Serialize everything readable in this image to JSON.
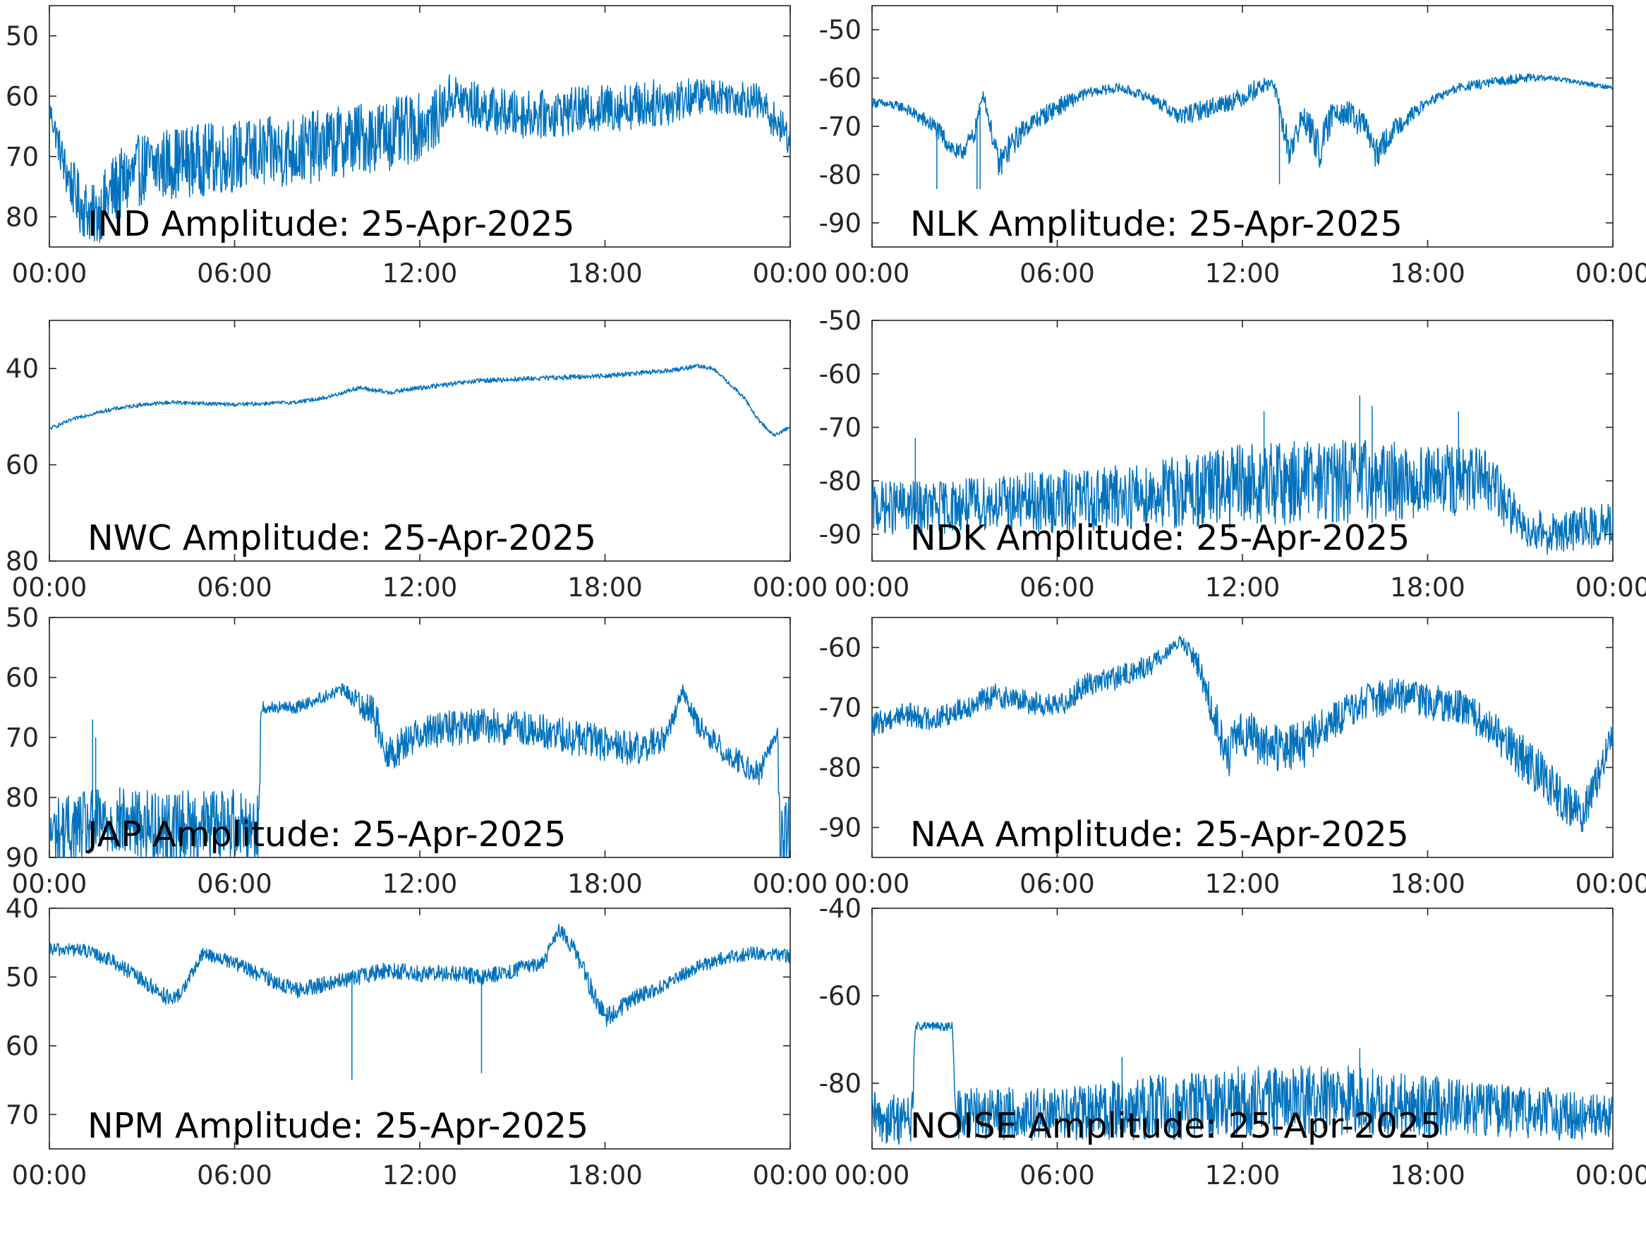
{
  "figure": {
    "line_color": "#0072BD",
    "axis_color": "#262626",
    "background": "#ffffff"
  },
  "chart_data": [
    {
      "type": "line",
      "title": "IND Amplitude: 25-Apr-2025",
      "xlabel": "",
      "ylabel": "",
      "xlim": [
        "00:00",
        "24:00"
      ],
      "ylim": [
        -85,
        -45
      ],
      "y_reversed": true,
      "y_tick_labels_clipped": true,
      "x_ticks": [
        0,
        6,
        12,
        18,
        24
      ],
      "x_tick_labels": [
        "00:00",
        "06:00",
        "12:00",
        "18:00",
        "00:00"
      ],
      "y_ticks": [
        -50,
        -60,
        -70,
        -80
      ],
      "y_tick_labels": [
        "50",
        "60",
        "70",
        "80"
      ],
      "grid": false,
      "series": [
        {
          "x": [
            0,
            0.5,
            1,
            1.5,
            2,
            3,
            4,
            6,
            8,
            10,
            11.5,
            12.5,
            13,
            14,
            15,
            16,
            18,
            20,
            21,
            22,
            23,
            23.5,
            24
          ],
          "y": [
            -62,
            -72,
            -78,
            -80,
            -76,
            -72,
            -71,
            -70,
            -69,
            -67,
            -66,
            -64,
            -60,
            -62,
            -63,
            -63,
            -62,
            -61,
            -60,
            -60,
            -61,
            -64,
            -67
          ],
          "spread": [
            2,
            4,
            5,
            5,
            6,
            6,
            6,
            6,
            6,
            6,
            6,
            5,
            4,
            4,
            4,
            4,
            4,
            4,
            3,
            3,
            3,
            3,
            3
          ]
        }
      ]
    },
    {
      "type": "line",
      "title": "NLK Amplitude: 25-Apr-2025",
      "xlabel": "",
      "ylabel": "",
      "xlim": [
        "00:00",
        "24:00"
      ],
      "ylim": [
        -95,
        -45
      ],
      "y_reversed": false,
      "x_ticks": [
        0,
        6,
        12,
        18,
        24
      ],
      "x_tick_labels": [
        "00:00",
        "06:00",
        "12:00",
        "18:00",
        "00:00"
      ],
      "y_ticks": [
        -50,
        -60,
        -70,
        -80,
        -90
      ],
      "y_tick_labels": [
        "-50",
        "-60",
        "-70",
        "-80",
        "-90"
      ],
      "grid": false,
      "series": [
        {
          "x": [
            0,
            1,
            2,
            2.8,
            3.3,
            3.6,
            4.1,
            4.5,
            5,
            6,
            7,
            8,
            9,
            10,
            11,
            12,
            12.5,
            13,
            13.5,
            14,
            14.5,
            15,
            16,
            16.3,
            17,
            18,
            19,
            20,
            21,
            22,
            23,
            24
          ],
          "y": [
            -65,
            -66,
            -70,
            -76,
            -72,
            -63,
            -78,
            -74,
            -70,
            -66,
            -63,
            -62,
            -64,
            -68,
            -66,
            -64,
            -62,
            -61,
            -75,
            -68,
            -75,
            -66,
            -70,
            -76,
            -70,
            -65,
            -62,
            -61,
            -60,
            -60,
            -61,
            -62
          ],
          "spread": [
            1,
            1,
            2,
            2,
            2,
            1,
            3,
            3,
            2,
            2,
            1,
            1,
            1,
            2,
            2,
            2,
            2,
            1,
            4,
            3,
            4,
            3,
            3,
            3,
            2,
            1,
            1,
            1,
            1,
            0.5,
            0.5,
            0.5
          ],
          "spikes": [
            [
              2.1,
              -83
            ],
            [
              3.4,
              -83
            ],
            [
              3.5,
              -83
            ],
            [
              13.2,
              -82
            ]
          ]
        }
      ]
    },
    {
      "type": "line",
      "title": "NWC Amplitude: 25-Apr-2025",
      "xlabel": "",
      "ylabel": "",
      "xlim": [
        "00:00",
        "24:00"
      ],
      "ylim": [
        -80,
        -30
      ],
      "y_reversed": true,
      "y_tick_labels_clipped": true,
      "x_ticks": [
        0,
        6,
        12,
        18,
        24
      ],
      "x_tick_labels": [
        "00:00",
        "06:00",
        "12:00",
        "18:00",
        "00:00"
      ],
      "y_ticks": [
        -40,
        -60,
        -80
      ],
      "y_tick_labels": [
        "40",
        "60",
        "80"
      ],
      "grid": false,
      "series": [
        {
          "x": [
            0,
            1,
            2,
            3,
            4,
            6,
            8,
            9,
            10,
            11,
            12,
            14,
            16,
            18,
            20,
            21,
            21.5,
            22,
            22.5,
            23,
            23.5,
            24
          ],
          "y": [
            -52.5,
            -50,
            -48.5,
            -47.5,
            -47,
            -47.5,
            -47,
            -46,
            -44,
            -45,
            -44,
            -42.5,
            -42,
            -41.5,
            -40.5,
            -39.5,
            -40,
            -43,
            -46,
            -51,
            -54,
            -52
          ],
          "spread": [
            0.4,
            0.4,
            0.4,
            0.4,
            0.4,
            0.4,
            0.4,
            0.4,
            0.5,
            0.5,
            0.5,
            0.5,
            0.5,
            0.5,
            0.5,
            0.4,
            0.4,
            0.4,
            0.4,
            0.4,
            0.4,
            0.4
          ]
        }
      ]
    },
    {
      "type": "line",
      "title": "NDK Amplitude: 25-Apr-2025",
      "xlabel": "",
      "ylabel": "",
      "xlim": [
        "00:00",
        "24:00"
      ],
      "ylim": [
        -95,
        -50
      ],
      "y_reversed": false,
      "x_ticks": [
        0,
        6,
        12,
        18,
        24
      ],
      "x_tick_labels": [
        "00:00",
        "06:00",
        "12:00",
        "18:00",
        "00:00"
      ],
      "y_ticks": [
        -50,
        -60,
        -70,
        -80,
        -90
      ],
      "y_tick_labels": [
        "-50",
        "-60",
        "-70",
        "-80",
        "-90"
      ],
      "grid": false,
      "series": [
        {
          "x": [
            0,
            2,
            4,
            6,
            8,
            10,
            12,
            14,
            16,
            18,
            20,
            20.5,
            21,
            22,
            23,
            24
          ],
          "y": [
            -85,
            -85,
            -84,
            -84,
            -83,
            -82,
            -81,
            -80,
            -80,
            -80,
            -80,
            -84,
            -88,
            -90,
            -89,
            -88
          ],
          "spread": [
            5,
            5,
            5,
            6,
            6,
            7,
            8,
            8,
            8,
            7,
            6,
            5,
            4,
            4,
            4,
            4
          ],
          "spikes": [
            [
              1.4,
              -72
            ],
            [
              15.8,
              -64
            ],
            [
              16.2,
              -66
            ],
            [
              12.7,
              -67
            ],
            [
              19,
              -67
            ]
          ]
        }
      ]
    },
    {
      "type": "line",
      "title": "JAP Amplitude: 25-Apr-2025",
      "xlabel": "",
      "ylabel": "",
      "xlim": [
        "00:00",
        "24:00"
      ],
      "ylim": [
        -90,
        -50
      ],
      "y_reversed": true,
      "y_tick_labels_clipped": true,
      "x_ticks": [
        0,
        6,
        12,
        18,
        24
      ],
      "x_tick_labels": [
        "00:00",
        "06:00",
        "12:00",
        "18:00",
        "00:00"
      ],
      "y_ticks": [
        -50,
        -60,
        -70,
        -80,
        -90
      ],
      "y_tick_labels": [
        "50",
        "60",
        "70",
        "80",
        "90"
      ],
      "grid": false,
      "series": [
        {
          "x": [
            0,
            2,
            4,
            6,
            6.8,
            6.85,
            8,
            9.5,
            10.5,
            11,
            12,
            14,
            16,
            18,
            19,
            20,
            20.5,
            21,
            22,
            23,
            23.6,
            23.65,
            24
          ],
          "y": [
            -86,
            -84,
            -85,
            -84,
            -85,
            -65,
            -65,
            -62,
            -66,
            -73,
            -69,
            -68,
            -69,
            -71,
            -72,
            -70,
            -62,
            -68,
            -73,
            -76,
            -69,
            -86,
            -86
          ],
          "spread": [
            6,
            6,
            6,
            6,
            6,
            1,
            1,
            1,
            3,
            3,
            3,
            3,
            3,
            3,
            3,
            2,
            1,
            2,
            2,
            2,
            1,
            6,
            6
          ],
          "spikes": [
            [
              1.4,
              -67
            ],
            [
              1.5,
              -70
            ]
          ]
        }
      ]
    },
    {
      "type": "line",
      "title": "NAA Amplitude: 25-Apr-2025",
      "xlabel": "",
      "ylabel": "",
      "xlim": [
        "00:00",
        "24:00"
      ],
      "ylim": [
        -95,
        -55
      ],
      "y_reversed": false,
      "x_ticks": [
        0,
        6,
        12,
        18,
        24
      ],
      "x_tick_labels": [
        "00:00",
        "06:00",
        "12:00",
        "18:00",
        "00:00"
      ],
      "y_ticks": [
        -60,
        -70,
        -80,
        -90
      ],
      "y_tick_labels": [
        "-60",
        "-70",
        "-80",
        "-90"
      ],
      "grid": false,
      "series": [
        {
          "x": [
            0,
            1,
            2,
            3,
            4,
            5,
            6,
            7,
            8,
            9,
            9.5,
            10,
            10.5,
            11,
            11.5,
            12,
            13,
            14,
            15,
            16,
            17,
            18,
            19,
            20,
            21,
            22,
            22.5,
            23,
            23.5,
            24
          ],
          "y": [
            -73,
            -71,
            -72,
            -70,
            -68,
            -69,
            -70,
            -66,
            -65,
            -63,
            -61,
            -59,
            -62,
            -70,
            -78,
            -74,
            -77,
            -76,
            -72,
            -69,
            -68,
            -69,
            -70,
            -73,
            -78,
            -83,
            -86,
            -88,
            -82,
            -74
          ],
          "spread": [
            2,
            2,
            2,
            2,
            2,
            2,
            2,
            2,
            2,
            2,
            1,
            1,
            2,
            3,
            4,
            4,
            4,
            4,
            3,
            3,
            3,
            3,
            3,
            3,
            4,
            4,
            4,
            3,
            3,
            2
          ]
        }
      ]
    },
    {
      "type": "line",
      "title": "NPM Amplitude: 25-Apr-2025",
      "xlabel": "",
      "ylabel": "",
      "xlim": [
        "00:00",
        "24:00"
      ],
      "ylim": [
        -75,
        -40
      ],
      "y_reversed": true,
      "y_tick_labels_clipped": true,
      "x_ticks": [
        0,
        6,
        12,
        18,
        24
      ],
      "x_tick_labels": [
        "00:00",
        "06:00",
        "12:00",
        "18:00",
        "00:00"
      ],
      "y_ticks": [
        -40,
        -50,
        -60,
        -70
      ],
      "y_tick_labels": [
        "40",
        "50",
        "60",
        "70"
      ],
      "grid": false,
      "series": [
        {
          "x": [
            0,
            1,
            2,
            3,
            4,
            4.3,
            5,
            6,
            7,
            8,
            9,
            10,
            11,
            12,
            13,
            14,
            15,
            16,
            16.5,
            17,
            17.5,
            18,
            19,
            20,
            21,
            22,
            23,
            24
          ],
          "y": [
            -46,
            -46,
            -47.5,
            -50.5,
            -53.5,
            -52,
            -46.5,
            -48,
            -50,
            -52,
            -51,
            -50,
            -49,
            -49.5,
            -49.5,
            -50,
            -49,
            -48,
            -43,
            -46,
            -51,
            -56,
            -53,
            -51,
            -48.5,
            -47,
            -46.5,
            -47
          ],
          "spread": [
            1,
            1,
            1,
            1.2,
            1.2,
            1,
            1,
            1,
            1.2,
            1.2,
            1.2,
            1.2,
            1.2,
            1.2,
            1.2,
            1.2,
            1.2,
            1,
            1,
            1.2,
            1.5,
            1.5,
            1.2,
            1,
            1,
            1,
            1,
            1
          ],
          "spikes": [
            [
              9.8,
              -65
            ],
            [
              14,
              -64
            ]
          ]
        }
      ]
    },
    {
      "type": "line",
      "title": "NOISE Amplitude: 25-Apr-2025",
      "xlabel": "",
      "ylabel": "",
      "xlim": [
        "00:00",
        "24:00"
      ],
      "ylim": [
        -95,
        -40
      ],
      "y_reversed": false,
      "x_ticks": [
        0,
        6,
        12,
        18,
        24
      ],
      "x_tick_labels": [
        "00:00",
        "06:00",
        "12:00",
        "18:00",
        "00:00"
      ],
      "y_ticks": [
        -40,
        -60,
        -80
      ],
      "y_tick_labels": [
        "-40",
        "-60",
        "-80"
      ],
      "grid": false,
      "series": [
        {
          "x": [
            0,
            1.3,
            1.4,
            2.6,
            2.7,
            4,
            6,
            8,
            10,
            12,
            14,
            16,
            18,
            20,
            22,
            24
          ],
          "y": [
            -88,
            -88,
            -67,
            -67,
            -87,
            -87,
            -87,
            -86,
            -85,
            -84,
            -84,
            -84,
            -85,
            -86,
            -87,
            -88
          ],
          "spread": [
            6,
            6,
            1,
            1,
            6,
            6,
            6,
            7,
            8,
            8,
            8,
            8,
            7,
            6,
            6,
            5
          ],
          "spikes": [
            [
              8.1,
              -74
            ],
            [
              15.8,
              -72
            ]
          ]
        }
      ]
    }
  ]
}
